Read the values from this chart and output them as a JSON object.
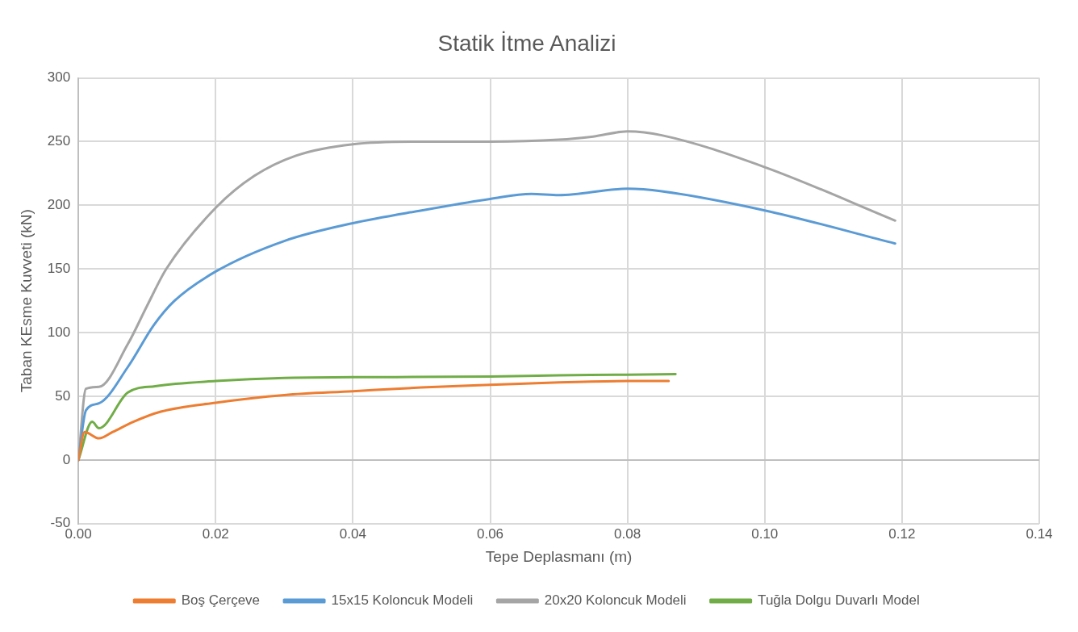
{
  "chart_data": {
    "type": "line",
    "title": "Statik İtme Analizi",
    "xlabel": "Tepe Deplasmanı (m)",
    "ylabel": "Taban KEsme Kuvveti (kN)",
    "xlim": [
      0,
      0.14
    ],
    "xticks": [
      {
        "value": 0,
        "label": "0.00"
      },
      {
        "value": 0.02,
        "label": "0.02"
      },
      {
        "value": 0.04,
        "label": "0.04"
      },
      {
        "value": 0.06,
        "label": "0.06"
      },
      {
        "value": 0.08,
        "label": "0.08"
      },
      {
        "value": 0.1,
        "label": "0.10"
      },
      {
        "value": 0.12,
        "label": "0.12"
      },
      {
        "value": 0.14,
        "label": "0.14"
      }
    ],
    "ylim": [
      -50,
      300
    ],
    "yticks": [
      -50,
      0,
      50,
      100,
      150,
      200,
      250,
      300
    ],
    "grid": true,
    "legend": "bottom",
    "marker": "none",
    "line_style": "solid",
    "series": [
      {
        "name": "Boş Çerçeve",
        "color": "#ed7d31",
        "x": [
          0,
          0.0009,
          0.003,
          0.005,
          0.008,
          0.012,
          0.02,
          0.03,
          0.04,
          0.05,
          0.06,
          0.07,
          0.08,
          0.086
        ],
        "values": [
          0,
          22,
          17,
          22,
          30,
          38,
          45,
          51,
          54,
          57,
          59,
          61,
          62,
          62
        ]
      },
      {
        "name": "15x15 Koloncuk Modeli",
        "color": "#5b9bd5",
        "x": [
          0,
          0.0011,
          0.003,
          0.0072,
          0.011,
          0.014,
          0.02,
          0.03,
          0.04,
          0.05,
          0.06,
          0.066,
          0.07,
          0.08,
          0.085,
          0.1,
          0.119
        ],
        "values": [
          0,
          39,
          44.5,
          73,
          106,
          125,
          148,
          172,
          186,
          196,
          205,
          209,
          208,
          213,
          211,
          196,
          170
        ]
      },
      {
        "name": "20x20 Koloncuk Modeli",
        "color": "#a5a5a5",
        "x": [
          0,
          0.0011,
          0.003,
          0.0072,
          0.01,
          0.0128,
          0.02,
          0.0256,
          0.0317,
          0.04,
          0.05,
          0.06,
          0.07,
          0.075,
          0.08,
          0.085,
          0.1,
          0.119
        ],
        "values": [
          0,
          56,
          57.5,
          91,
          121,
          150,
          198,
          223,
          239,
          248,
          250,
          250,
          251.5,
          254,
          258,
          255,
          230,
          188
        ]
      },
      {
        "name": "Tuğla Dolgu Duvarlı Model",
        "color": "#70ad47",
        "x": [
          0,
          0.002,
          0.003,
          0.0072,
          0.0112,
          0.02,
          0.03,
          0.04,
          0.06,
          0.07,
          0.08,
          0.087
        ],
        "values": [
          0,
          30,
          25,
          53,
          58,
          62,
          64.5,
          65,
          65.5,
          66.5,
          67,
          67.5
        ]
      }
    ]
  }
}
